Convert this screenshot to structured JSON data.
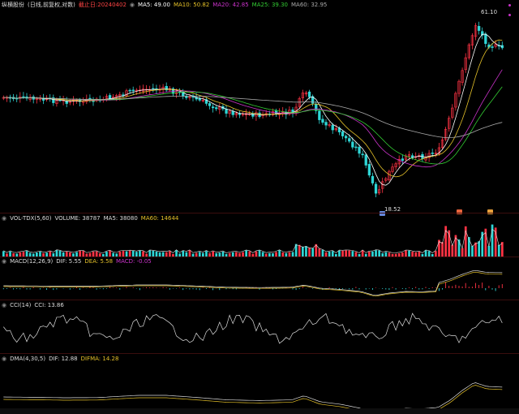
{
  "main": {
    "name": "纵横股份",
    "mode": "(日线,前复权,对数)",
    "deadline": "截止日:20240402",
    "ma": [
      {
        "label": "MA5: 49.00",
        "color": "#ffffff"
      },
      {
        "label": "MA10: 50.82",
        "color": "#e6c229"
      },
      {
        "label": "MA20: 42.85",
        "color": "#cc33cc"
      },
      {
        "label": "MA25: 39.30",
        "color": "#33cc33"
      },
      {
        "label": "MA60: 32.95",
        "color": "#aaaaaa"
      }
    ],
    "high_label": "61.10",
    "low_label": "18.52"
  },
  "volume": {
    "name": "VOL-TDX(5,60)",
    "items": [
      {
        "label": "VOLUME: 38787",
        "color": "#dddddd"
      },
      {
        "label": "MA5: 38080",
        "color": "#dddddd"
      },
      {
        "label": "MA60: 14644",
        "color": "#e6c229"
      }
    ]
  },
  "macd": {
    "name": "MACD(12,26,9)",
    "items": [
      {
        "label": "DIF: 5.55",
        "color": "#dddddd"
      },
      {
        "label": "DEA: 5.58",
        "color": "#e6c229"
      },
      {
        "label": "MACD: -0.05",
        "color": "#cc33cc"
      }
    ]
  },
  "cci": {
    "name": "CCI(14)",
    "items": [
      {
        "label": "CCI: 13.86",
        "color": "#dddddd"
      }
    ]
  },
  "dma": {
    "name": "DMA(4,30,5)",
    "items": [
      {
        "label": "DIF: 12.88",
        "color": "#dddddd"
      },
      {
        "label": "DIFMA: 14.28",
        "color": "#e6c229"
      }
    ]
  },
  "colors": {
    "up": "#ff3344",
    "down": "#2fd6d6",
    "sep": "#3a0d0d"
  }
}
